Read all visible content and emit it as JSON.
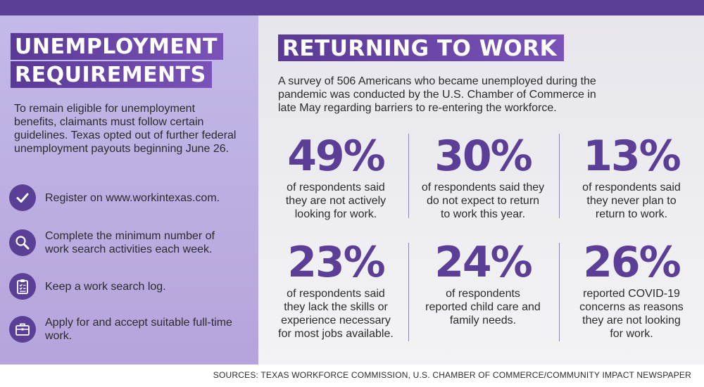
{
  "left": {
    "title_line1": "UNEMPLOYMENT",
    "title_line2": "REQUIREMENTS",
    "intro": "To remain eligible for unemployment benefits, claimants must follow certain guidelines. Texas opted out of further federal unemployment payouts beginning June 26.",
    "items": [
      {
        "icon": "checkmark-icon",
        "text": "Register on www.workintexas.com."
      },
      {
        "icon": "magnifier-icon",
        "text": "Complete the minimum number of work search activities each week."
      },
      {
        "icon": "clipboard-icon",
        "text": "Keep a work search log."
      },
      {
        "icon": "briefcase-icon",
        "text": "Apply for and accept suitable full-time work."
      }
    ]
  },
  "right": {
    "title": "RETURNING TO WORK",
    "survey": "A survey of 506 Americans who became unemployed during the pandemic was conducted by the U.S. Chamber of Commerce in late May regarding barriers to re-entering the workforce.",
    "stats": [
      {
        "pct": "49%",
        "desc": "of respondents said\nthey are not actively\nlooking for work."
      },
      {
        "pct": "30%",
        "desc": "of respondents said they\ndo not expect to return\nto work this year."
      },
      {
        "pct": "13%",
        "desc": "of respondents said\nthey never plan to\nreturn to work."
      },
      {
        "pct": "23%",
        "desc": "of respondents said\nthey lack the skills or\nexperience necessary\nfor most jobs available."
      },
      {
        "pct": "24%",
        "desc": "of respondents\nreported child care and\nfamily needs."
      },
      {
        "pct": "26%",
        "desc": "reported COVID-19\nconcerns as reasons\nthey are not looking\nfor work."
      }
    ]
  },
  "sources": "SOURCES: TEXAS WORKFORCE COMMISSION, U.S. CHAMBER OF COMMERCE/COMMUNITY IMPACT NEWSPAPER",
  "colors": {
    "accent": "#5b3f97",
    "left_panel": "#bfb2e3",
    "right_panel": "#ececf0"
  }
}
